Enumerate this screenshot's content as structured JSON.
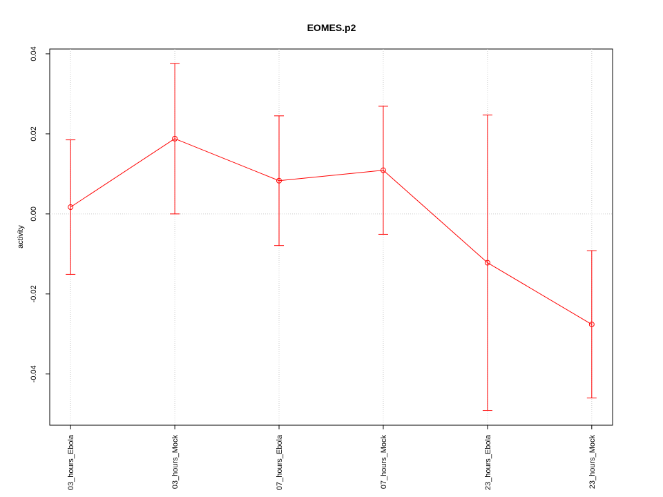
{
  "chart_data": {
    "type": "line",
    "title": "EOMES.p2",
    "y_label": "activity",
    "categories": [
      "03_hours_Ebola",
      "03_hours_Mock",
      "07_hours_Ebola",
      "07_hours_Mock",
      "23_hours_Ebola",
      "23_hours_Mock"
    ],
    "values": [
      0.0017,
      0.0188,
      0.0083,
      0.0109,
      -0.0122,
      -0.0276
    ],
    "errors": [
      0.0168,
      0.0188,
      0.0162,
      0.016,
      0.0369,
      0.0184
    ],
    "color": "#ff0000",
    "ylim": [
      -0.0528,
      0.0412
    ],
    "yticks": [
      -0.04,
      -0.02,
      {
        "value": 0,
        "label": "0.00"
      },
      0.02,
      0.04
    ],
    "grid": "x",
    "hline": 0
  }
}
